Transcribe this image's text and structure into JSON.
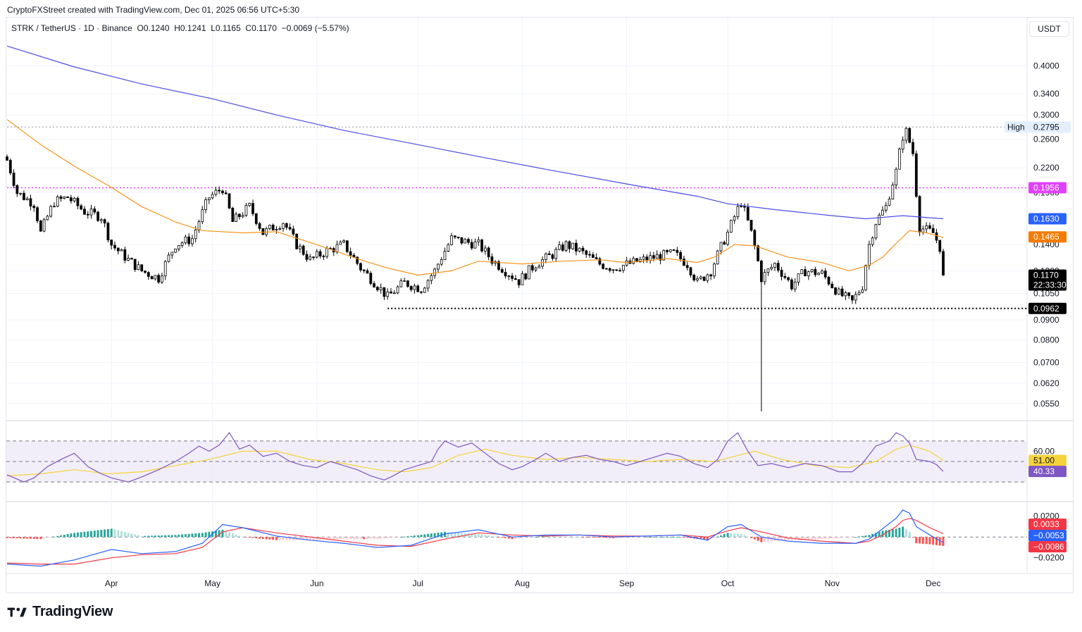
{
  "header": {
    "caption": "CryptoFXStreet created with TradingView.com, Dec 01, 2025 06:56 UTC+5:30"
  },
  "legend": {
    "line": "STRK / TetherUS · 1D · Binance  O0.1240  H0.1241  L0.1165  C0.1170  −0.0069 (−5.57%)"
  },
  "currency": "USDT",
  "footer": {
    "logo_text": "TradingView"
  },
  "colors": {
    "up_candle": "#ffffff",
    "down_candle": "#000000",
    "ema50": "#f7931a",
    "ema200": "#4c4ce8",
    "resistance_line": "#e040fb",
    "rsi_line": "#7e57c2",
    "rsi_ma": "#f5d33b",
    "macd_line": "#2962ff",
    "signal_line": "#f23645",
    "hist_pos_strong": "#26a69a",
    "hist_pos_weak": "#b2dfdb",
    "hist_neg_strong": "#ff5252",
    "hist_neg_weak": "#ffcdd2"
  },
  "chart_data": [
    {
      "type": "candlestick",
      "title": "STRK / TetherUS · 1D · Binance",
      "y_scale": "log",
      "ylim": [
        0.0525,
        0.46
      ],
      "y_ticks": [
        "0.4000",
        "0.3400",
        "0.3000",
        "0.2600",
        "0.2200",
        "0.1900",
        "0.1400",
        "0.1200",
        "0.1050",
        "0.0900",
        "0.0800",
        "0.0700",
        "0.0620",
        "0.0550"
      ],
      "x_ticks": [
        "Apr",
        "May",
        "Jun",
        "Jul",
        "Aug",
        "Sep",
        "Oct",
        "Nov",
        "Dec"
      ],
      "x_tick_days": [
        31,
        61,
        92,
        122,
        153,
        184,
        214,
        245,
        275
      ],
      "days_visible": 290,
      "levels": [
        {
          "name": "high",
          "label": "High",
          "value": 0.2795,
          "text": "0.2795",
          "style": "dotted-gray"
        },
        {
          "name": "resistance",
          "value": 0.1956,
          "text": "0.1956",
          "style": "dotted-magenta"
        },
        {
          "name": "support",
          "value": 0.0962,
          "text": "0.0962",
          "style": "dotted-black",
          "start_day": 113
        }
      ],
      "price_badges": [
        {
          "name": "ema200",
          "value": 0.163,
          "text": "0.1630",
          "color": "#2962ff"
        },
        {
          "name": "ema50",
          "value": 0.1465,
          "text": "0.1465",
          "color": "#f57c00"
        },
        {
          "name": "last",
          "value": 0.117,
          "text": "0.1170",
          "countdown": "22:33:30",
          "color": "#000000"
        }
      ],
      "candle_path": [
        [
          0,
          0.23
        ],
        [
          3,
          0.19
        ],
        [
          8,
          0.178
        ],
        [
          10,
          0.15
        ],
        [
          14,
          0.18
        ],
        [
          18,
          0.185
        ],
        [
          23,
          0.17
        ],
        [
          28,
          0.165
        ],
        [
          31,
          0.14
        ],
        [
          36,
          0.128
        ],
        [
          40,
          0.12
        ],
        [
          45,
          0.115
        ],
        [
          50,
          0.14
        ],
        [
          55,
          0.145
        ],
        [
          60,
          0.185
        ],
        [
          64,
          0.195
        ],
        [
          67,
          0.16
        ],
        [
          72,
          0.175
        ],
        [
          76,
          0.15
        ],
        [
          82,
          0.16
        ],
        [
          86,
          0.14
        ],
        [
          90,
          0.128
        ],
        [
          95,
          0.135
        ],
        [
          100,
          0.14
        ],
        [
          105,
          0.122
        ],
        [
          110,
          0.11
        ],
        [
          113,
          0.103
        ],
        [
          118,
          0.112
        ],
        [
          123,
          0.108
        ],
        [
          127,
          0.12
        ],
        [
          132,
          0.145
        ],
        [
          140,
          0.14
        ],
        [
          144,
          0.128
        ],
        [
          148,
          0.12
        ],
        [
          152,
          0.113
        ],
        [
          157,
          0.125
        ],
        [
          162,
          0.132
        ],
        [
          166,
          0.14
        ],
        [
          170,
          0.135
        ],
        [
          176,
          0.125
        ],
        [
          180,
          0.122
        ],
        [
          186,
          0.126
        ],
        [
          192,
          0.13
        ],
        [
          198,
          0.133
        ],
        [
          202,
          0.125
        ],
        [
          205,
          0.112
        ],
        [
          209,
          0.12
        ],
        [
          214,
          0.15
        ],
        [
          218,
          0.18
        ],
        [
          221,
          0.15
        ],
        [
          224,
          0.115
        ],
        [
          228,
          0.125
        ],
        [
          233,
          0.11
        ],
        [
          237,
          0.12
        ],
        [
          242,
          0.118
        ],
        [
          247,
          0.105
        ],
        [
          251,
          0.1
        ],
        [
          254,
          0.11
        ],
        [
          256,
          0.14
        ],
        [
          258,
          0.16
        ],
        [
          261,
          0.175
        ],
        [
          264,
          0.215
        ],
        [
          266,
          0.265
        ],
        [
          267,
          0.272
        ],
        [
          269,
          0.24
        ],
        [
          270,
          0.19
        ],
        [
          271,
          0.155
        ],
        [
          275,
          0.15
        ],
        [
          277,
          0.138
        ],
        [
          278,
          0.117
        ]
      ],
      "ema50_path": [
        [
          0,
          0.292
        ],
        [
          10,
          0.252
        ],
        [
          20,
          0.222
        ],
        [
          31,
          0.196
        ],
        [
          40,
          0.175
        ],
        [
          50,
          0.16
        ],
        [
          58,
          0.152
        ],
        [
          70,
          0.15
        ],
        [
          80,
          0.151
        ],
        [
          92,
          0.14
        ],
        [
          105,
          0.128
        ],
        [
          113,
          0.122
        ],
        [
          122,
          0.117
        ],
        [
          132,
          0.12
        ],
        [
          140,
          0.127
        ],
        [
          153,
          0.125
        ],
        [
          165,
          0.127
        ],
        [
          176,
          0.128
        ],
        [
          184,
          0.126
        ],
        [
          196,
          0.129
        ],
        [
          205,
          0.126
        ],
        [
          210,
          0.13
        ],
        [
          216,
          0.14
        ],
        [
          222,
          0.139
        ],
        [
          232,
          0.13
        ],
        [
          242,
          0.126
        ],
        [
          250,
          0.12
        ],
        [
          256,
          0.124
        ],
        [
          260,
          0.13
        ],
        [
          264,
          0.141
        ],
        [
          268,
          0.152
        ],
        [
          273,
          0.15
        ],
        [
          278,
          0.146
        ]
      ],
      "ema200_path": [
        [
          0,
          0.45
        ],
        [
          20,
          0.398
        ],
        [
          40,
          0.36
        ],
        [
          61,
          0.33
        ],
        [
          80,
          0.3
        ],
        [
          100,
          0.274
        ],
        [
          122,
          0.252
        ],
        [
          140,
          0.235
        ],
        [
          160,
          0.218
        ],
        [
          184,
          0.2
        ],
        [
          205,
          0.186
        ],
        [
          214,
          0.178
        ],
        [
          228,
          0.172
        ],
        [
          245,
          0.166
        ],
        [
          255,
          0.163
        ],
        [
          266,
          0.166
        ],
        [
          278,
          0.163
        ]
      ]
    },
    {
      "type": "line",
      "title": "RSI",
      "ylim": [
        15,
        85
      ],
      "band": [
        30,
        70
      ],
      "midline": 50,
      "y_ticks": [
        "60.00"
      ],
      "series": [],
      "rsi_path": [
        [
          0,
          37
        ],
        [
          5,
          30
        ],
        [
          8,
          34
        ],
        [
          12,
          45
        ],
        [
          16,
          52
        ],
        [
          20,
          58
        ],
        [
          24,
          45
        ],
        [
          28,
          38
        ],
        [
          31,
          34
        ],
        [
          36,
          30
        ],
        [
          40,
          35
        ],
        [
          45,
          42
        ],
        [
          50,
          50
        ],
        [
          54,
          58
        ],
        [
          57,
          65
        ],
        [
          60,
          60
        ],
        [
          63,
          66
        ],
        [
          66,
          78
        ],
        [
          69,
          62
        ],
        [
          72,
          66
        ],
        [
          76,
          55
        ],
        [
          80,
          58
        ],
        [
          84,
          50
        ],
        [
          88,
          46
        ],
        [
          92,
          44
        ],
        [
          96,
          50
        ],
        [
          100,
          46
        ],
        [
          104,
          42
        ],
        [
          108,
          36
        ],
        [
          112,
          32
        ],
        [
          114,
          35
        ],
        [
          118,
          42
        ],
        [
          122,
          46
        ],
        [
          126,
          50
        ],
        [
          128,
          62
        ],
        [
          130,
          70
        ],
        [
          134,
          64
        ],
        [
          138,
          68
        ],
        [
          142,
          58
        ],
        [
          146,
          48
        ],
        [
          150,
          42
        ],
        [
          153,
          45
        ],
        [
          157,
          52
        ],
        [
          160,
          58
        ],
        [
          164,
          50
        ],
        [
          168,
          54
        ],
        [
          172,
          56
        ],
        [
          176,
          52
        ],
        [
          180,
          50
        ],
        [
          184,
          46
        ],
        [
          188,
          50
        ],
        [
          192,
          54
        ],
        [
          196,
          58
        ],
        [
          200,
          55
        ],
        [
          204,
          48
        ],
        [
          208,
          44
        ],
        [
          211,
          52
        ],
        [
          214,
          70
        ],
        [
          217,
          78
        ],
        [
          220,
          60
        ],
        [
          223,
          46
        ],
        [
          227,
          48
        ],
        [
          232,
          44
        ],
        [
          237,
          48
        ],
        [
          242,
          46
        ],
        [
          247,
          40
        ],
        [
          251,
          40
        ],
        [
          254,
          48
        ],
        [
          258,
          65
        ],
        [
          262,
          70
        ],
        [
          264,
          78
        ],
        [
          266,
          75
        ],
        [
          268,
          68
        ],
        [
          270,
          52
        ],
        [
          274,
          50
        ],
        [
          276,
          47
        ],
        [
          278,
          40.33
        ]
      ],
      "rsi_ma_path": [
        [
          0,
          36
        ],
        [
          10,
          38
        ],
        [
          20,
          42
        ],
        [
          30,
          38
        ],
        [
          40,
          40
        ],
        [
          50,
          46
        ],
        [
          60,
          52
        ],
        [
          70,
          60
        ],
        [
          80,
          60
        ],
        [
          90,
          52
        ],
        [
          100,
          48
        ],
        [
          110,
          42
        ],
        [
          118,
          40
        ],
        [
          126,
          44
        ],
        [
          134,
          56
        ],
        [
          142,
          62
        ],
        [
          150,
          56
        ],
        [
          160,
          52
        ],
        [
          170,
          54
        ],
        [
          180,
          52
        ],
        [
          190,
          50
        ],
        [
          200,
          52
        ],
        [
          210,
          50
        ],
        [
          216,
          55
        ],
        [
          222,
          60
        ],
        [
          230,
          52
        ],
        [
          240,
          46
        ],
        [
          250,
          44
        ],
        [
          258,
          50
        ],
        [
          264,
          62
        ],
        [
          268,
          66
        ],
        [
          274,
          60
        ],
        [
          278,
          51
        ]
      ],
      "badges": [
        {
          "name": "rsi-ma",
          "value": 51.0,
          "text": "51.00",
          "color": "#f5d33b"
        },
        {
          "name": "rsi",
          "value": 40.33,
          "text": "40.33",
          "color": "#7e57c2"
        }
      ]
    },
    {
      "type": "bar+line",
      "title": "MACD",
      "ylim": [
        -0.029,
        0.03
      ],
      "y_ticks": [
        "0.0200",
        "−0.0200"
      ],
      "y_tick_values": [
        0.02,
        -0.02
      ],
      "macd_path": [
        [
          0,
          -0.026
        ],
        [
          10,
          -0.028
        ],
        [
          20,
          -0.022
        ],
        [
          31,
          -0.012
        ],
        [
          40,
          -0.016
        ],
        [
          50,
          -0.014
        ],
        [
          58,
          -0.006
        ],
        [
          64,
          0.012
        ],
        [
          70,
          0.009
        ],
        [
          80,
          0.001
        ],
        [
          90,
          -0.003
        ],
        [
          100,
          -0.006
        ],
        [
          110,
          -0.01
        ],
        [
          120,
          -0.008
        ],
        [
          130,
          0.003
        ],
        [
          140,
          0.007
        ],
        [
          150,
          0.0
        ],
        [
          160,
          0.002
        ],
        [
          170,
          0.002
        ],
        [
          180,
          0.0
        ],
        [
          190,
          0.001
        ],
        [
          200,
          0.002
        ],
        [
          208,
          -0.003
        ],
        [
          214,
          0.01
        ],
        [
          218,
          0.012
        ],
        [
          224,
          0.0
        ],
        [
          232,
          -0.004
        ],
        [
          242,
          -0.006
        ],
        [
          252,
          -0.006
        ],
        [
          256,
          -0.002
        ],
        [
          260,
          0.008
        ],
        [
          264,
          0.018
        ],
        [
          266,
          0.026
        ],
        [
          268,
          0.023
        ],
        [
          270,
          0.01
        ],
        [
          274,
          0.002
        ],
        [
          278,
          -0.0053
        ]
      ],
      "signal_path": [
        [
          0,
          -0.025
        ],
        [
          10,
          -0.026
        ],
        [
          20,
          -0.026
        ],
        [
          31,
          -0.02
        ],
        [
          40,
          -0.017
        ],
        [
          50,
          -0.016
        ],
        [
          58,
          -0.01
        ],
        [
          64,
          0.005
        ],
        [
          70,
          0.009
        ],
        [
          80,
          0.004
        ],
        [
          90,
          0.0
        ],
        [
          100,
          -0.004
        ],
        [
          110,
          -0.008
        ],
        [
          120,
          -0.009
        ],
        [
          130,
          -0.002
        ],
        [
          140,
          0.004
        ],
        [
          150,
          0.002
        ],
        [
          160,
          0.001
        ],
        [
          170,
          0.002
        ],
        [
          180,
          0.001
        ],
        [
          190,
          0.001
        ],
        [
          200,
          0.002
        ],
        [
          208,
          0.0
        ],
        [
          214,
          0.006
        ],
        [
          218,
          0.009
        ],
        [
          224,
          0.005
        ],
        [
          232,
          -0.001
        ],
        [
          242,
          -0.004
        ],
        [
          252,
          -0.006
        ],
        [
          256,
          -0.004
        ],
        [
          260,
          0.002
        ],
        [
          264,
          0.01
        ],
        [
          266,
          0.016
        ],
        [
          268,
          0.018
        ],
        [
          270,
          0.016
        ],
        [
          274,
          0.009
        ],
        [
          278,
          0.0033
        ]
      ],
      "badges": [
        {
          "name": "signal",
          "value": 0.0033,
          "text": "0.0033",
          "color": "#f23645"
        },
        {
          "name": "macd",
          "value": -0.0053,
          "text": "−0.0053",
          "color": "#2962ff"
        },
        {
          "name": "histogram",
          "value": -0.0086,
          "text": "−0.0086",
          "color": "#f23645"
        }
      ]
    }
  ]
}
